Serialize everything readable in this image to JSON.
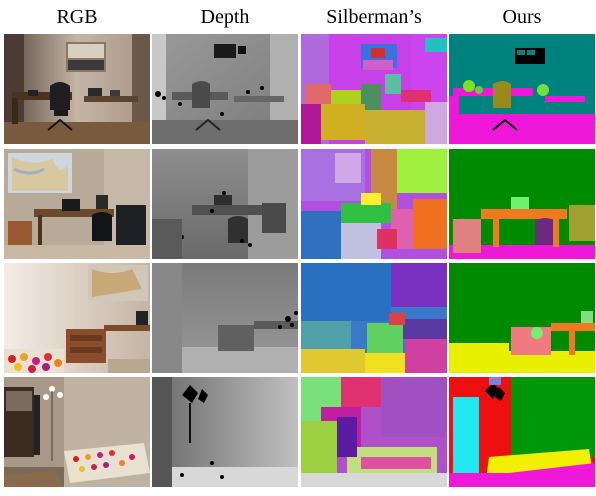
{
  "headers": [
    "RGB",
    "Depth",
    "Silberman’s",
    "Ours"
  ]
}
